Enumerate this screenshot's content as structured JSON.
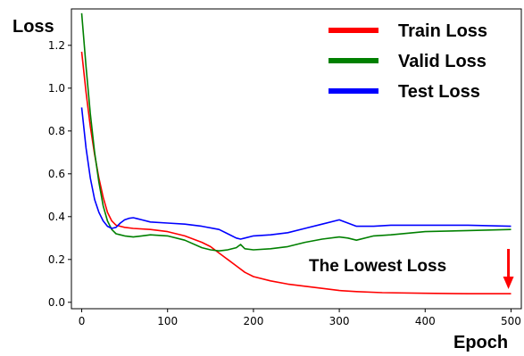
{
  "chart_data": {
    "type": "line",
    "xlabel": "Epoch",
    "ylabel": "Loss",
    "xlim": [
      -12,
      512
    ],
    "ylim": [
      -0.03,
      1.37
    ],
    "xticks": [
      0,
      100,
      200,
      300,
      400,
      500
    ],
    "yticks": [
      0.0,
      0.2,
      0.4,
      0.6,
      0.8,
      1.0,
      1.2
    ],
    "grid": false,
    "legend_position": "top-right",
    "series": [
      {
        "name": "Train Loss",
        "color": "#ff0000",
        "x": [
          0,
          5,
          10,
          15,
          20,
          25,
          30,
          35,
          40,
          45,
          50,
          60,
          80,
          100,
          120,
          140,
          150,
          160,
          170,
          180,
          190,
          200,
          220,
          240,
          260,
          280,
          300,
          320,
          350,
          400,
          450,
          500
        ],
        "y": [
          1.17,
          0.98,
          0.82,
          0.69,
          0.58,
          0.49,
          0.42,
          0.38,
          0.36,
          0.355,
          0.35,
          0.345,
          0.34,
          0.33,
          0.31,
          0.28,
          0.26,
          0.23,
          0.2,
          0.17,
          0.14,
          0.12,
          0.1,
          0.085,
          0.075,
          0.065,
          0.055,
          0.05,
          0.045,
          0.042,
          0.04,
          0.04
        ]
      },
      {
        "name": "Valid Loss",
        "color": "#008000",
        "x": [
          0,
          5,
          10,
          15,
          20,
          25,
          30,
          35,
          40,
          45,
          50,
          60,
          70,
          80,
          100,
          120,
          140,
          150,
          160,
          170,
          180,
          185,
          190,
          200,
          220,
          240,
          260,
          280,
          300,
          310,
          320,
          340,
          360,
          400,
          450,
          500
        ],
        "y": [
          1.35,
          1.1,
          0.88,
          0.7,
          0.56,
          0.45,
          0.38,
          0.34,
          0.32,
          0.315,
          0.31,
          0.305,
          0.31,
          0.315,
          0.31,
          0.29,
          0.255,
          0.245,
          0.24,
          0.245,
          0.255,
          0.27,
          0.25,
          0.245,
          0.25,
          0.26,
          0.28,
          0.295,
          0.305,
          0.3,
          0.29,
          0.31,
          0.315,
          0.33,
          0.335,
          0.34
        ]
      },
      {
        "name": "Test Loss",
        "color": "#0000ff",
        "x": [
          0,
          5,
          10,
          15,
          20,
          25,
          30,
          35,
          40,
          45,
          50,
          55,
          60,
          65,
          70,
          80,
          100,
          120,
          140,
          160,
          170,
          180,
          185,
          190,
          200,
          220,
          240,
          260,
          280,
          300,
          310,
          320,
          340,
          360,
          400,
          450,
          500
        ],
        "y": [
          0.91,
          0.72,
          0.58,
          0.48,
          0.42,
          0.38,
          0.355,
          0.345,
          0.35,
          0.37,
          0.385,
          0.392,
          0.395,
          0.39,
          0.385,
          0.375,
          0.37,
          0.365,
          0.355,
          0.34,
          0.32,
          0.3,
          0.295,
          0.3,
          0.31,
          0.315,
          0.325,
          0.345,
          0.365,
          0.385,
          0.37,
          0.355,
          0.355,
          0.36,
          0.36,
          0.36,
          0.355
        ]
      }
    ],
    "annotations": [
      {
        "text": "The Lowest Loss",
        "arrow": "down",
        "arrow_color": "#ff0000",
        "target_x": 497,
        "target_y": 0.055
      }
    ]
  }
}
